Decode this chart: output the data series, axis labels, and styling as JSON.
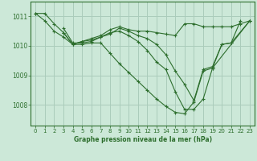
{
  "background_color": "#cce8d8",
  "grid_color": "#aaccbb",
  "line_color": "#2d6e2d",
  "title": "Graphe pression niveau de la mer (hPa)",
  "xlim": [
    -0.5,
    23.5
  ],
  "ylim": [
    1007.3,
    1011.5
  ],
  "yticks": [
    1008,
    1009,
    1010,
    1011
  ],
  "xticks": [
    0,
    1,
    2,
    3,
    4,
    5,
    6,
    7,
    8,
    9,
    10,
    11,
    12,
    13,
    14,
    15,
    16,
    17,
    18,
    19,
    20,
    21,
    22,
    23
  ],
  "series": [
    {
      "x": [
        0,
        1,
        2,
        3,
        4,
        5,
        6,
        7,
        8,
        9,
        10,
        11,
        12,
        13,
        14,
        15,
        16,
        17,
        18,
        19,
        20,
        21,
        22,
        23
      ],
      "y": [
        1011.1,
        1011.1,
        1010.75,
        1010.45,
        1010.05,
        1010.15,
        1010.25,
        1010.35,
        1010.55,
        1010.65,
        1010.55,
        1010.5,
        1010.5,
        1010.45,
        1010.4,
        1010.35,
        1010.75,
        1010.75,
        1010.65,
        1010.65,
        1010.65,
        1010.65,
        1010.75,
        1010.85
      ]
    },
    {
      "x": [
        0,
        1,
        2,
        3,
        4,
        5,
        6,
        7,
        8,
        9,
        10,
        11,
        12,
        13,
        14,
        15,
        16,
        17,
        18,
        19,
        20,
        21,
        22
      ],
      "y": [
        1011.1,
        1010.85,
        1010.5,
        1010.3,
        1010.05,
        1010.05,
        1010.1,
        1010.1,
        1009.75,
        1009.4,
        1009.1,
        1008.8,
        1008.5,
        1008.2,
        1007.95,
        1007.75,
        1007.7,
        1008.1,
        1009.15,
        1009.25,
        1010.05,
        1010.1,
        1010.85
      ]
    },
    {
      "x": [
        3,
        4,
        5,
        6,
        7,
        8,
        9,
        10,
        11,
        12,
        13,
        14,
        15,
        16,
        17,
        18,
        19,
        23
      ],
      "y": [
        1010.45,
        1010.05,
        1010.15,
        1010.2,
        1010.3,
        1010.45,
        1010.5,
        1010.35,
        1010.15,
        1009.85,
        1009.45,
        1009.2,
        1008.45,
        1007.85,
        1007.85,
        1008.2,
        1009.25,
        1010.85
      ]
    },
    {
      "x": [
        3,
        4,
        5,
        6,
        7,
        8,
        9,
        10,
        11,
        12,
        13,
        14,
        15,
        16,
        17,
        18,
        19,
        20,
        21,
        23
      ],
      "y": [
        1010.6,
        1010.1,
        1010.1,
        1010.15,
        1010.3,
        1010.4,
        1010.6,
        1010.5,
        1010.35,
        1010.25,
        1010.05,
        1009.7,
        1009.15,
        1008.7,
        1008.15,
        1009.2,
        1009.3,
        1010.05,
        1010.1,
        1010.85
      ]
    }
  ]
}
